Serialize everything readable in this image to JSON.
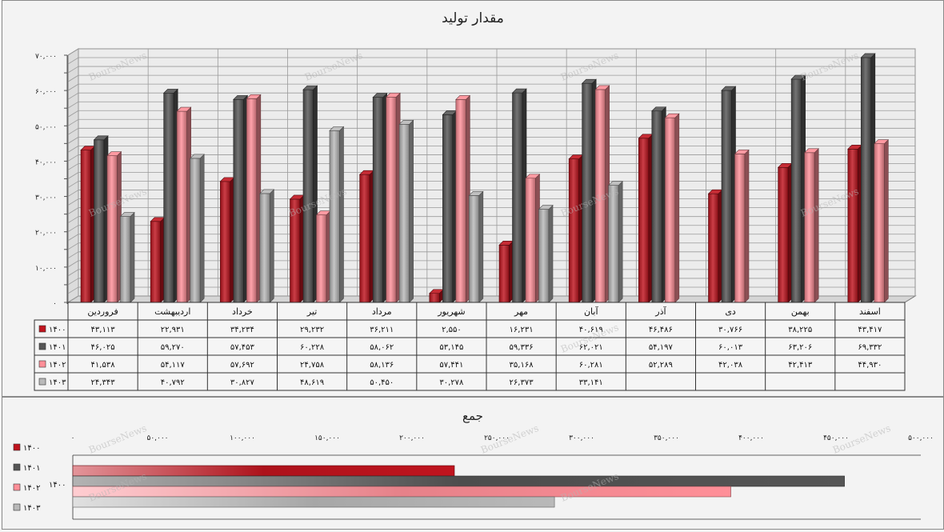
{
  "chart_data": [
    {
      "type": "bar",
      "title": "مقدار تولید",
      "ylim": [
        0,
        70000
      ],
      "y_ticks": [
        "۰",
        "۱۰,۰۰۰",
        "۲۰,۰۰۰",
        "۳۰,۰۰۰",
        "۴۰,۰۰۰",
        "۵۰,۰۰۰",
        "۶۰,۰۰۰",
        "۷۰,۰۰۰"
      ],
      "grid": true,
      "legend": "table-left",
      "categories": [
        "فروردین",
        "اردیبهشت",
        "خرداد",
        "تیر",
        "مرداد",
        "شهریور",
        "مهر",
        "آبان",
        "آذر",
        "دی",
        "بهمن",
        "اسفند"
      ],
      "series": [
        {
          "name": "۱۴۰۰",
          "color": "#c0141e",
          "values": [
            43113,
            22931,
            34234,
            29232,
            36211,
            2550,
            16231,
            40619,
            46486,
            30766,
            38225,
            43417
          ],
          "labels": [
            "۴۳,۱۱۳",
            "۲۲,۹۳۱",
            "۳۴,۲۳۴",
            "۲۹,۲۳۲",
            "۳۶,۲۱۱",
            "۲,۵۵۰",
            "۱۶,۲۳۱",
            "۴۰,۶۱۹",
            "۴۶,۴۸۶",
            "۳۰,۷۶۶",
            "۳۸,۲۲۵",
            "۴۳,۴۱۷"
          ]
        },
        {
          "name": "۱۴۰۱",
          "color": "#555555",
          "values": [
            46025,
            59270,
            57453,
            60228,
            58062,
            53145,
            59336,
            62021,
            54197,
            60013,
            63206,
            69332
          ],
          "labels": [
            "۴۶,۰۲۵",
            "۵۹,۲۷۰",
            "۵۷,۴۵۳",
            "۶۰,۲۲۸",
            "۵۸,۰۶۲",
            "۵۳,۱۴۵",
            "۵۹,۳۳۶",
            "۶۲,۰۲۱",
            "۵۴,۱۹۷",
            "۶۰,۰۱۳",
            "۶۳,۲۰۶",
            "۶۹,۳۳۲"
          ]
        },
        {
          "name": "۱۴۰۲",
          "color": "#ff8f98",
          "values": [
            41538,
            54117,
            57692,
            24758,
            58136,
            57441,
            35168,
            60281,
            52289,
            42038,
            42413,
            44930
          ],
          "labels": [
            "۴۱,۵۳۸",
            "۵۴,۱۱۷",
            "۵۷,۶۹۲",
            "۲۴,۷۵۸",
            "۵۸,۱۳۶",
            "۵۷,۴۴۱",
            "۳۵,۱۶۸",
            "۶۰,۲۸۱",
            "۵۲,۲۸۹",
            "۴۲,۰۳۸",
            "۴۲,۴۱۳",
            "۴۴,۹۳۰"
          ]
        },
        {
          "name": "۱۴۰۳",
          "color": "#b9b9b9",
          "values": [
            24343,
            40792,
            30827,
            48619,
            50450,
            30278,
            26373,
            33141,
            null,
            null,
            null,
            null
          ],
          "labels": [
            "۲۴,۳۴۳",
            "۴۰,۷۹۲",
            "۳۰,۸۲۷",
            "۴۸,۶۱۹",
            "۵۰,۴۵۰",
            "۳۰,۲۷۸",
            "۲۶,۳۷۳",
            "۳۳,۱۴۱",
            "",
            "",
            "",
            ""
          ]
        }
      ]
    },
    {
      "type": "bar",
      "orientation": "horizontal",
      "title": "جمع",
      "xlim": [
        0,
        500000
      ],
      "x_ticks": [
        "۰",
        "۵۰,۰۰۰",
        "۱۰۰,۰۰۰",
        "۱۵۰,۰۰۰",
        "۲۰۰,۰۰۰",
        "۲۵۰,۰۰۰",
        "۳۰۰,۰۰۰",
        "۳۵۰,۰۰۰",
        "۴۰۰,۰۰۰",
        "۴۵۰,۰۰۰",
        "۵۰۰,۰۰۰"
      ],
      "categories": [
        "۱۴۰۰"
      ],
      "legend": "left",
      "series": [
        {
          "name": "۱۴۰۰",
          "color": "#c0141e",
          "values": [
            225000
          ]
        },
        {
          "name": "۱۴۰۱",
          "color": "#555555",
          "values": [
            455000
          ]
        },
        {
          "name": "۱۴۰۲",
          "color": "#ff8f98",
          "values": [
            388000
          ]
        },
        {
          "name": "۱۴۰۳",
          "color": "#b9b9b9",
          "values": [
            284000
          ]
        }
      ]
    }
  ],
  "watermark": "BourseNews"
}
